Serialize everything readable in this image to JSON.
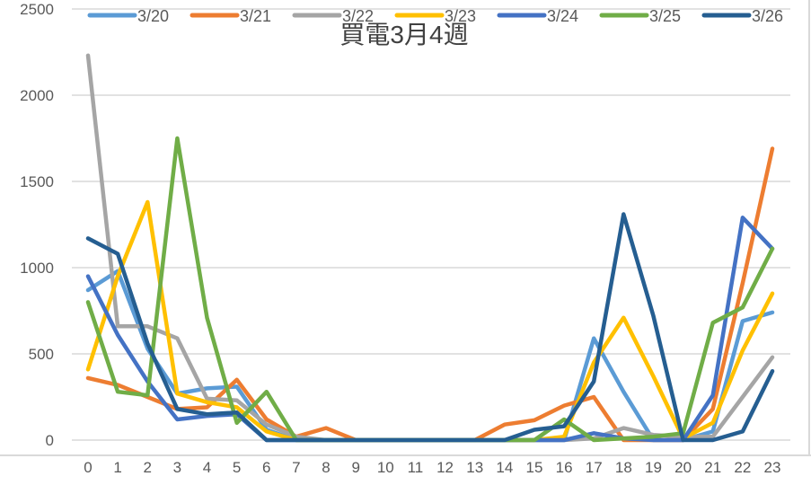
{
  "chart_data": {
    "type": "line",
    "title": "買電3月4週",
    "xlabel": "",
    "ylabel": "",
    "x": [
      0,
      1,
      2,
      3,
      4,
      5,
      6,
      7,
      8,
      9,
      10,
      11,
      12,
      13,
      14,
      15,
      16,
      17,
      18,
      19,
      20,
      21,
      22,
      23
    ],
    "ylim": [
      0,
      2500
    ],
    "yticks": [
      0,
      500,
      1000,
      1500,
      2000,
      2500
    ],
    "grid": true,
    "legend_position": "top",
    "series": [
      {
        "name": "3/20",
        "color": "#5B9BD5",
        "values": [
          870,
          980,
          530,
          270,
          300,
          310,
          60,
          0,
          0,
          0,
          0,
          0,
          0,
          0,
          0,
          0,
          0,
          590,
          280,
          0,
          0,
          50,
          690,
          740
        ]
      },
      {
        "name": "3/21",
        "color": "#ED7D31",
        "values": [
          360,
          320,
          250,
          180,
          190,
          350,
          120,
          20,
          70,
          0,
          0,
          0,
          0,
          0,
          90,
          115,
          200,
          250,
          0,
          0,
          0,
          180,
          910,
          1690
        ]
      },
      {
        "name": "3/22",
        "color": "#A5A5A5",
        "values": [
          2230,
          660,
          660,
          590,
          240,
          230,
          90,
          20,
          0,
          0,
          0,
          0,
          0,
          0,
          0,
          0,
          0,
          10,
          70,
          30,
          20,
          20,
          250,
          480
        ]
      },
      {
        "name": "3/23",
        "color": "#FFC000",
        "values": [
          410,
          950,
          1380,
          270,
          220,
          190,
          50,
          0,
          0,
          0,
          0,
          0,
          0,
          0,
          0,
          0,
          20,
          450,
          710,
          370,
          10,
          100,
          520,
          850
        ]
      },
      {
        "name": "3/24",
        "color": "#4472C4",
        "values": [
          950,
          610,
          340,
          120,
          140,
          150,
          0,
          0,
          0,
          0,
          0,
          0,
          0,
          0,
          0,
          0,
          0,
          40,
          10,
          0,
          0,
          260,
          1290,
          1110
        ]
      },
      {
        "name": "3/25",
        "color": "#70AD47",
        "values": [
          800,
          280,
          260,
          1750,
          710,
          100,
          280,
          0,
          0,
          0,
          0,
          0,
          0,
          0,
          0,
          0,
          120,
          0,
          10,
          20,
          40,
          680,
          770,
          1110
        ]
      },
      {
        "name": "3/26",
        "color": "#255E91",
        "values": [
          1170,
          1080,
          560,
          180,
          150,
          160,
          0,
          0,
          0,
          0,
          0,
          0,
          0,
          0,
          0,
          60,
          80,
          340,
          1310,
          720,
          0,
          0,
          50,
          400
        ]
      }
    ]
  },
  "title": "買電3月4週",
  "y_axis": {
    "ticks": [
      "0",
      "500",
      "1000",
      "1500",
      "2000",
      "2500"
    ]
  },
  "x_axis": {
    "ticks": [
      "0",
      "1",
      "2",
      "3",
      "4",
      "5",
      "6",
      "7",
      "8",
      "9",
      "10",
      "11",
      "12",
      "13",
      "14",
      "15",
      "16",
      "17",
      "18",
      "19",
      "20",
      "21",
      "22",
      "23"
    ]
  },
  "legend": [
    {
      "label": "3/20",
      "color": "#5B9BD5"
    },
    {
      "label": "3/21",
      "color": "#ED7D31"
    },
    {
      "label": "3/22",
      "color": "#A5A5A5"
    },
    {
      "label": "3/23",
      "color": "#FFC000"
    },
    {
      "label": "3/24",
      "color": "#4472C4"
    },
    {
      "label": "3/25",
      "color": "#70AD47"
    },
    {
      "label": "3/26",
      "color": "#255E91"
    }
  ]
}
